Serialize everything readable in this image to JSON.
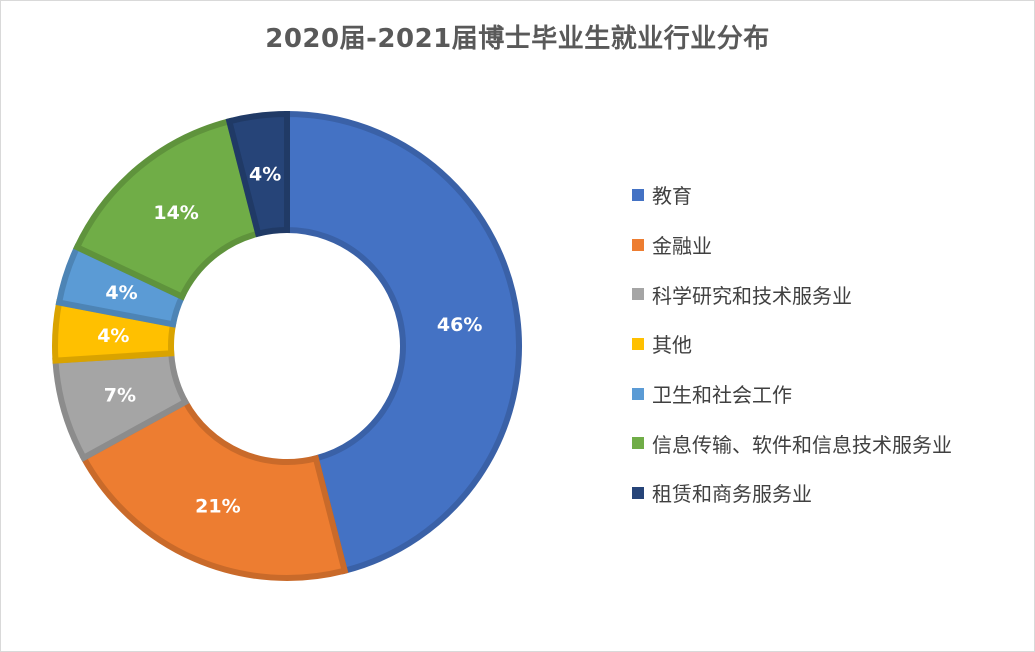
{
  "chart_data": {
    "type": "donut",
    "title": "2020届-2021届博士毕业生就业行业分布",
    "legend_position": "right",
    "categories": [
      "教育",
      "金融业",
      "科学研究和技术服务业",
      "其他",
      "卫生和社会工作",
      "信息传输、软件和信息技术服务业",
      "租赁和商务服务业"
    ],
    "values": [
      46,
      21,
      7,
      4,
      4,
      14,
      4
    ],
    "data_labels": [
      "46%",
      "21%",
      "7%",
      "4%",
      "4%",
      "14%",
      "4%"
    ],
    "colors": [
      "#4472C4",
      "#ED7D31",
      "#A5A5A5",
      "#FFC000",
      "#5B9BD5",
      "#70AD47",
      "#264478"
    ]
  }
}
